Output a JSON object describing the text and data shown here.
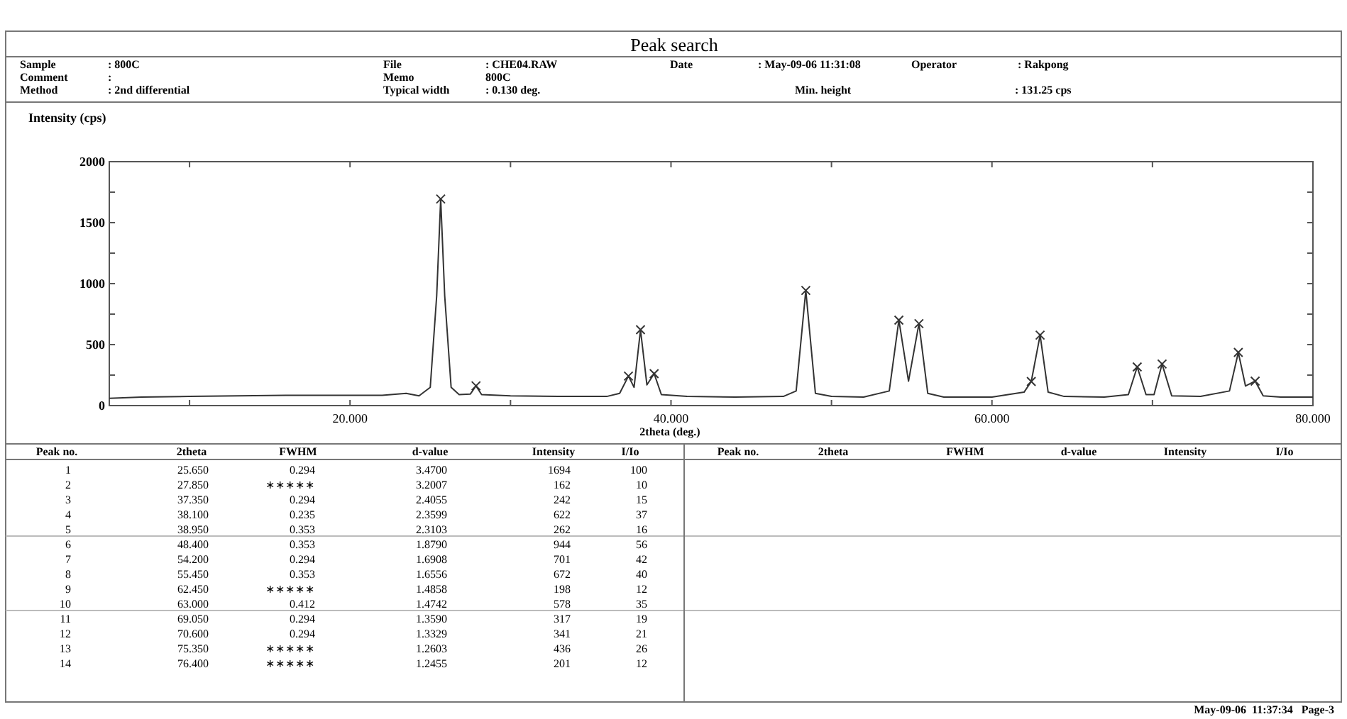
{
  "chart_data": [
    {
      "type": "line",
      "title": "Peak search",
      "ylabel": "Intensity (cps)",
      "xlabel": "2theta (deg.)",
      "xlim": [
        5,
        80
      ],
      "xticks": [
        {
          "value": 10,
          "label": null
        },
        {
          "value": 20,
          "label": "20.000"
        },
        {
          "value": 30,
          "label": null
        },
        {
          "value": 40,
          "label": "40.000"
        },
        {
          "value": 50,
          "label": null
        },
        {
          "value": 60,
          "label": "60.000"
        },
        {
          "value": 70,
          "label": null
        },
        {
          "value": 80,
          "label": "80.000"
        }
      ],
      "ylim": [
        0,
        2000
      ],
      "yticks": [
        0,
        {
          "value": 250,
          "label": null
        },
        500,
        {
          "value": 750,
          "label": null
        },
        1000,
        {
          "value": 1250,
          "label": null
        },
        1500,
        {
          "value": 1750,
          "label": null
        },
        2000
      ],
      "grid": false,
      "series": [
        {
          "type": "line",
          "color": "#333333",
          "marker": "none",
          "line_style": "solid",
          "x": [
            5,
            7,
            10,
            13,
            16,
            19,
            22,
            23.5,
            24.3,
            25,
            25.4,
            25.65,
            25.9,
            26.3,
            26.8,
            27.5,
            27.85,
            28.2,
            30,
            33,
            36,
            36.8,
            37.35,
            37.7,
            38.1,
            38.5,
            38.95,
            39.4,
            41,
            44,
            47,
            47.8,
            48.4,
            49,
            50,
            52,
            53.6,
            54.2,
            54.8,
            55.45,
            56,
            57,
            60,
            62,
            62.45,
            63,
            63.5,
            64.5,
            67,
            68.5,
            69.05,
            69.6,
            70.1,
            70.6,
            71.2,
            73,
            74.8,
            75.35,
            75.8,
            76.4,
            76.9,
            78,
            80
          ],
          "values": [
            60,
            70,
            75,
            80,
            85,
            85,
            85,
            100,
            80,
            150,
            900,
            1694,
            900,
            150,
            90,
            95,
            162,
            90,
            80,
            75,
            75,
            100,
            242,
            150,
            622,
            170,
            262,
            90,
            75,
            70,
            75,
            120,
            944,
            100,
            75,
            70,
            120,
            701,
            200,
            672,
            100,
            70,
            70,
            110,
            198,
            578,
            110,
            75,
            70,
            90,
            317,
            90,
            90,
            341,
            80,
            75,
            120,
            436,
            160,
            201,
            80,
            70,
            70
          ]
        },
        {
          "type": "scatter",
          "color": "#333333",
          "marker": "cross",
          "x": [
            25.65,
            27.85,
            37.35,
            38.1,
            38.95,
            48.4,
            54.2,
            55.45,
            62.45,
            63,
            69.05,
            70.6,
            75.35,
            76.4
          ],
          "values": [
            1694,
            162,
            242,
            622,
            262,
            944,
            701,
            672,
            198,
            578,
            317,
            341,
            436,
            201
          ]
        }
      ],
      "annotations": [
        "Sample\t: 800C",
        "Comment\t:",
        "Method\t: 2nd differential",
        "File\t: CHE04.RAW",
        "Memo\t800C",
        "Typical width\t: 0.130 deg.",
        "Date\t: May-09-06 11:31:08",
        "Operator\t: Rakpong",
        "Min. height\t: 131.25 cps",
        "May-09-06  11:37:34   Page-3"
      ]
    },
    {
      "type": "other",
      "annotations": [
        "Peak no.\t2theta\tFWHM\td-value\tIntensity\tI/Io",
        "1\t25.650\t0.294\t3.4700\t1694\t100",
        "2\t27.850\t∗∗∗∗∗\t3.2007\t162\t10",
        "3\t37.350\t0.294\t2.4055\t242\t15",
        "4\t38.100\t0.235\t2.3599\t622\t37",
        "5\t38.950\t0.353\t2.3103\t262\t16",
        "6\t48.400\t0.353\t1.8790\t944\t56",
        "7\t54.200\t0.294\t1.6908\t701\t42",
        "8\t55.450\t0.353\t1.6556\t672\t40",
        "9\t62.450\t∗∗∗∗∗\t1.4858\t198\t12",
        "10\t63.000\t0.412\t1.4742\t578\t35",
        "11\t69.050\t0.294\t1.3590\t317\t19",
        "12\t70.600\t0.294\t1.3329\t341\t21",
        "13\t75.350\t∗∗∗∗∗\t1.2603\t436\t26",
        "14\t76.400\t∗∗∗∗∗\t1.2455\t201\t12"
      ]
    },
    {
      "type": "other",
      "annotations": [
        "Peak no.\t2theta\tFWHM\td-value\tIntensity\tI/Io"
      ]
    }
  ]
}
